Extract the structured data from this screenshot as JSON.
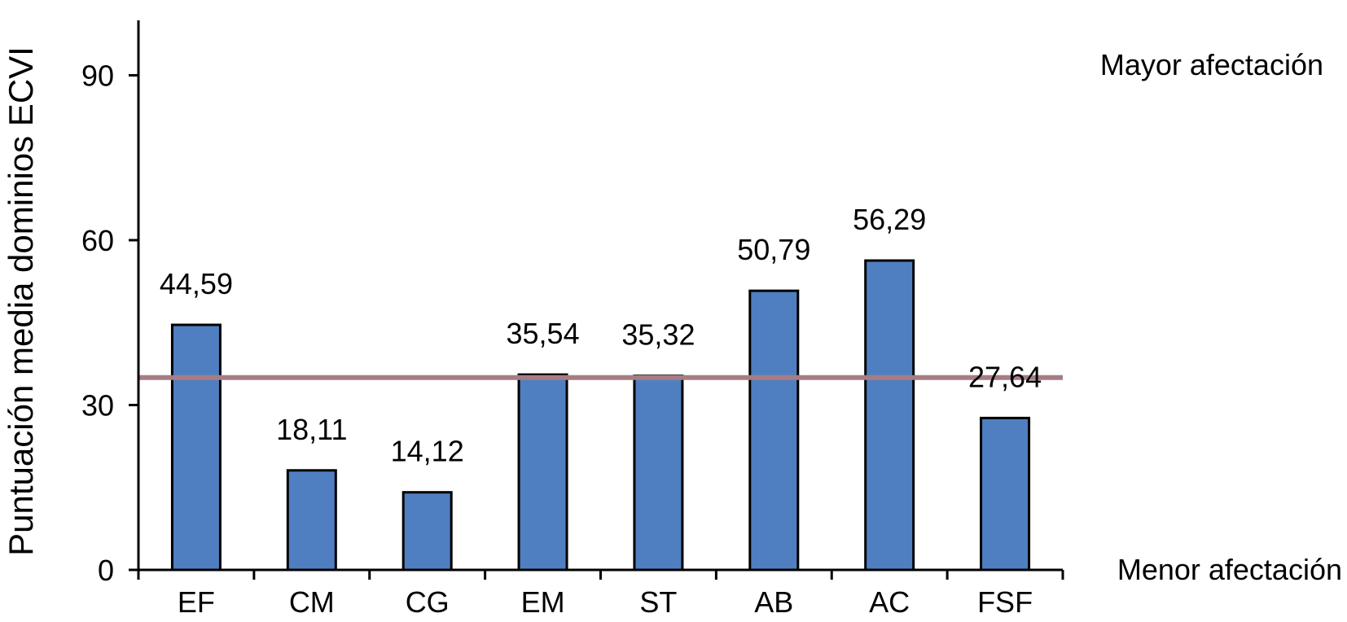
{
  "chart_data": {
    "type": "bar",
    "categories": [
      "EF",
      "CM",
      "CG",
      "EM",
      "ST",
      "AB",
      "AC",
      "FSF"
    ],
    "values": [
      44.59,
      18.11,
      14.12,
      35.54,
      35.32,
      50.79,
      56.29,
      27.64
    ],
    "value_labels": [
      "44,59",
      "18,11",
      "14,12",
      "35,54",
      "35,32",
      "50,79",
      "56,29",
      "27,64"
    ],
    "title": "",
    "xlabel": "",
    "ylabel": "Puntuación media dominios ECVI",
    "ylim": [
      0,
      100
    ],
    "yticks": [
      0,
      30,
      60,
      90
    ],
    "reference_line": 35,
    "annotations": {
      "top": "Mayor afectación",
      "bottom": "Menor afectación"
    },
    "grid": false,
    "colors": {
      "bar": "#4F7FC1",
      "bar_border": "#000000",
      "reference_line": "#A67D84",
      "axis": "#000000"
    }
  }
}
